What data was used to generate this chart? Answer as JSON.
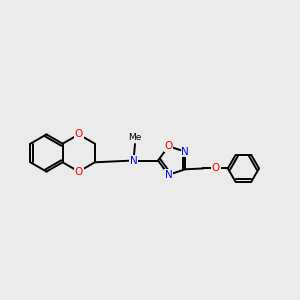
{
  "bg_color": "#ebebeb",
  "bond_color": "#000000",
  "N_color": "#0000ff",
  "O_color": "#ff0000",
  "line_width": 1.4,
  "figsize": [
    3.0,
    3.0
  ],
  "dpi": 100,
  "xlim": [
    0,
    10
  ],
  "ylim": [
    2,
    8
  ]
}
